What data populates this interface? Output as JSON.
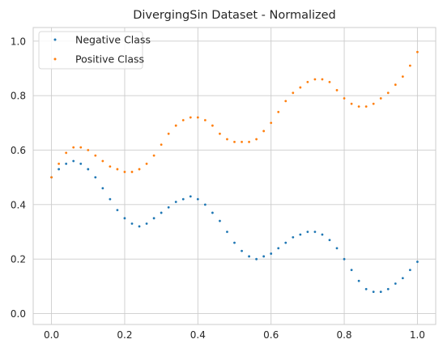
{
  "chart_data": {
    "type": "scatter",
    "title": "DivergingSin Dataset - Normalized",
    "xlabel": "",
    "ylabel": "",
    "xlim": [
      -0.05,
      1.05
    ],
    "ylim": [
      -0.04,
      1.05
    ],
    "x_ticks": [
      "0.0",
      "0.2",
      "0.4",
      "0.6",
      "0.8",
      "1.0"
    ],
    "y_ticks": [
      "0.0",
      "0.2",
      "0.4",
      "0.6",
      "0.8",
      "1.0"
    ],
    "grid": true,
    "legend_position": "upper-left",
    "series": [
      {
        "name": "Negative Class",
        "color": "#1f77b4",
        "x": [
          0.0,
          0.02,
          0.04,
          0.06,
          0.08,
          0.1,
          0.12,
          0.14,
          0.16,
          0.18,
          0.2,
          0.22,
          0.24,
          0.26,
          0.28,
          0.3,
          0.32,
          0.34,
          0.36,
          0.38,
          0.4,
          0.42,
          0.44,
          0.46,
          0.48,
          0.5,
          0.52,
          0.54,
          0.56,
          0.58,
          0.6,
          0.62,
          0.64,
          0.66,
          0.68,
          0.7,
          0.72,
          0.74,
          0.76,
          0.78,
          0.8,
          0.82,
          0.84,
          0.86,
          0.88,
          0.9,
          0.92,
          0.94,
          0.96,
          0.98,
          1.0
        ],
        "y": [
          0.5,
          0.53,
          0.55,
          0.56,
          0.55,
          0.53,
          0.5,
          0.46,
          0.42,
          0.38,
          0.35,
          0.33,
          0.32,
          0.33,
          0.35,
          0.37,
          0.39,
          0.41,
          0.42,
          0.43,
          0.42,
          0.4,
          0.37,
          0.34,
          0.3,
          0.26,
          0.23,
          0.21,
          0.2,
          0.21,
          0.22,
          0.24,
          0.26,
          0.28,
          0.29,
          0.3,
          0.3,
          0.29,
          0.27,
          0.24,
          0.2,
          0.16,
          0.12,
          0.09,
          0.08,
          0.08,
          0.09,
          0.11,
          0.13,
          0.16,
          0.19
        ]
      },
      {
        "name": "Positive Class",
        "color": "#ff7f0e",
        "x": [
          0.0,
          0.02,
          0.04,
          0.06,
          0.08,
          0.1,
          0.12,
          0.14,
          0.16,
          0.18,
          0.2,
          0.22,
          0.24,
          0.26,
          0.28,
          0.3,
          0.32,
          0.34,
          0.36,
          0.38,
          0.4,
          0.42,
          0.44,
          0.46,
          0.48,
          0.5,
          0.52,
          0.54,
          0.56,
          0.58,
          0.6,
          0.62,
          0.64,
          0.66,
          0.68,
          0.7,
          0.72,
          0.74,
          0.76,
          0.78,
          0.8,
          0.82,
          0.84,
          0.86,
          0.88,
          0.9,
          0.92,
          0.94,
          0.96,
          0.98,
          1.0
        ],
        "y": [
          0.5,
          0.55,
          0.59,
          0.61,
          0.61,
          0.6,
          0.58,
          0.56,
          0.54,
          0.53,
          0.52,
          0.52,
          0.53,
          0.55,
          0.58,
          0.62,
          0.66,
          0.69,
          0.71,
          0.72,
          0.72,
          0.71,
          0.69,
          0.66,
          0.64,
          0.63,
          0.63,
          0.63,
          0.64,
          0.67,
          0.7,
          0.74,
          0.78,
          0.81,
          0.83,
          0.85,
          0.86,
          0.86,
          0.85,
          0.82,
          0.79,
          0.77,
          0.76,
          0.76,
          0.77,
          0.79,
          0.81,
          0.84,
          0.87,
          0.91,
          0.96
        ]
      }
    ]
  }
}
